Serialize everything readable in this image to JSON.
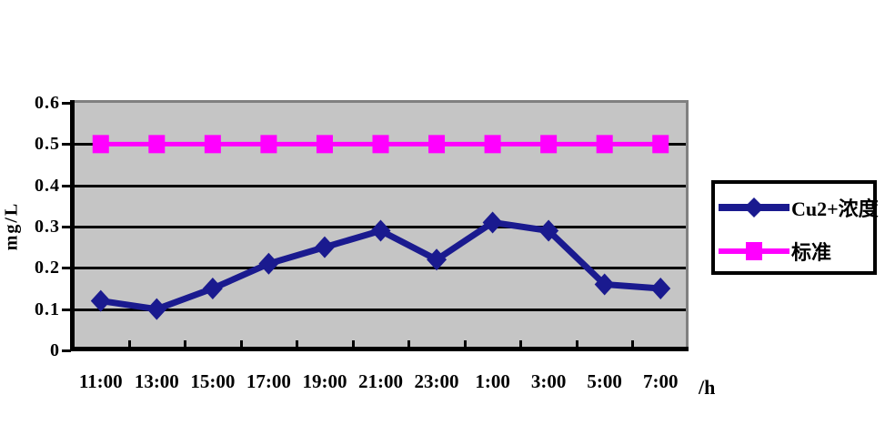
{
  "chart_data": {
    "type": "line",
    "categories": [
      "11:00",
      "13:00",
      "15:00",
      "17:00",
      "19:00",
      "21:00",
      "23:00",
      "1:00",
      "3:00",
      "5:00",
      "7:00"
    ],
    "series": [
      {
        "name": "Cu2+浓度",
        "values": [
          0.12,
          0.1,
          0.15,
          0.21,
          0.25,
          0.29,
          0.22,
          0.31,
          0.29,
          0.16,
          0.15
        ],
        "color": "#1A1A8F",
        "marker": "diamond"
      },
      {
        "name": "标准",
        "values": [
          0.5,
          0.5,
          0.5,
          0.5,
          0.5,
          0.5,
          0.5,
          0.5,
          0.5,
          0.5,
          0.5
        ],
        "color": "#FF00FF",
        "marker": "square"
      }
    ],
    "xlabel": "/h",
    "ylabel": "mg/L",
    "ylim": [
      0,
      0.6
    ],
    "yticks": [
      0,
      0.1,
      0.2,
      0.3,
      0.4,
      0.5,
      0.6
    ],
    "ytick_labels": [
      "0",
      "0.1",
      "0.2",
      "0.3",
      "0.4",
      "0.5",
      "0.6"
    ],
    "grid": "horizontal",
    "legend_position": "right",
    "colors": {
      "plot_bg": "#C5C5C5",
      "grid": "#000000",
      "axis": "#000000",
      "plot_edge_shadow": "#808080",
      "legend_border": "#000000",
      "background": "#FFFFFF"
    }
  }
}
